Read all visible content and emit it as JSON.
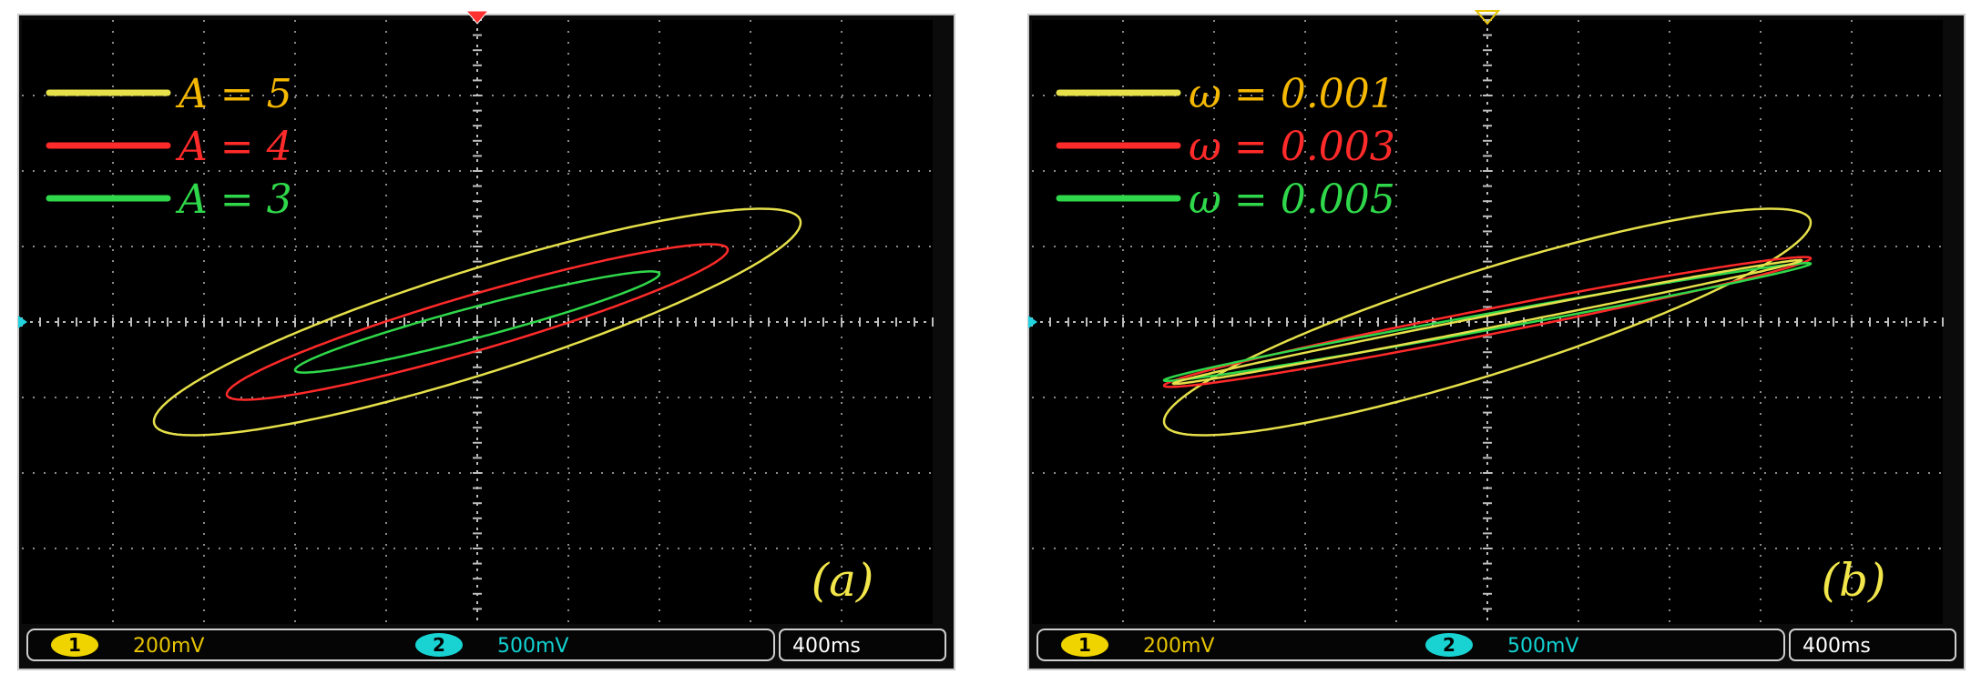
{
  "colors": {
    "background": "#000000",
    "grid": "#8a8a8a",
    "yellow": "#e6e04a",
    "red": "#ff2a2a",
    "green": "#2fd84a",
    "ch1_badge": "#f0d400",
    "ch2_badge": "#19d3d3"
  },
  "chart_data": [
    {
      "type": "line",
      "panel_label": "(a)",
      "legend": [
        {
          "label": "A = 5",
          "color": "#e6e04a",
          "text_color": "#f5b800"
        },
        {
          "label": "A = 4",
          "color": "#ff2a2a",
          "text_color": "#ff2a2a"
        },
        {
          "label": "A = 3",
          "color": "#2fd84a",
          "text_color": "#2fd84a"
        }
      ],
      "series": [
        {
          "x_amp": 3.55,
          "y_amp": 1.5,
          "phase": 0.5,
          "color": "#e6e04a"
        },
        {
          "x_amp": 2.75,
          "y_amp": 1.03,
          "phase": 0.38,
          "color": "#ff2a2a"
        },
        {
          "x_amp": 2.0,
          "y_amp": 0.67,
          "phase": 0.32,
          "color": "#2fd84a"
        }
      ],
      "grid": {
        "x_divs": 10,
        "y_divs": 8
      },
      "status": {
        "ch1_num": "1",
        "ch1": "200mV",
        "ch2_num": "2",
        "ch2": "500mV",
        "timebase": "400ms"
      }
    },
    {
      "type": "line",
      "panel_label": "(b)",
      "legend": [
        {
          "label": "ω = 0.001",
          "color": "#e6e04a",
          "text_color": "#f5b800"
        },
        {
          "label": "ω = 0.003",
          "color": "#ff2a2a",
          "text_color": "#ff2a2a"
        },
        {
          "label": "ω = 0.005",
          "color": "#2fd84a",
          "text_color": "#2fd84a"
        }
      ],
      "series": [
        {
          "x_amp": 3.55,
          "y_amp": 1.5,
          "phase": 0.5,
          "color": "#e6e04a"
        },
        {
          "x_amp": 3.55,
          "y_amp": 0.86,
          "phase": 0.2,
          "color": "#ff2a2a"
        },
        {
          "x_amp": 3.55,
          "y_amp": 0.78,
          "phase": 0.14,
          "color": "#2fd84a"
        },
        {
          "x_amp": 3.45,
          "y_amp": 0.82,
          "phase": 0.1,
          "color": "#e6e04a"
        }
      ],
      "grid": {
        "x_divs": 10,
        "y_divs": 8
      },
      "status": {
        "ch1_num": "1",
        "ch1": "200mV",
        "ch2_num": "2",
        "ch2": "500mV",
        "timebase": "400ms"
      }
    }
  ]
}
